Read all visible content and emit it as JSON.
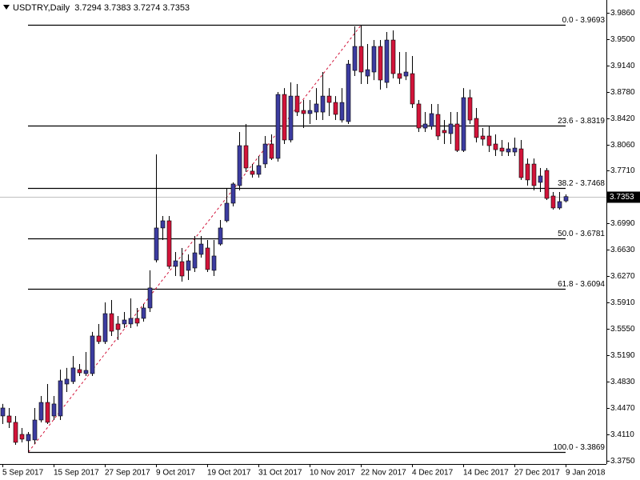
{
  "chart_data": {
    "type": "candlestick",
    "title": "USDTRY,Daily",
    "categories": [
      "5 Sep 2017",
      null,
      null,
      null,
      null,
      null,
      null,
      null,
      "15 Sep 2017",
      null,
      null,
      null,
      null,
      null,
      null,
      null,
      "27 Sep 2017",
      null,
      null,
      null,
      null,
      null,
      null,
      null,
      "9 Oct 2017",
      null,
      null,
      null,
      null,
      null,
      null,
      null,
      "19 Oct 2017",
      null,
      null,
      null,
      null,
      null,
      null,
      null,
      "31 Oct 2017",
      null,
      null,
      null,
      null,
      null,
      null,
      null,
      "10 Nov 2017",
      null,
      null,
      null,
      null,
      null,
      null,
      null,
      "22 Nov 2017",
      null,
      null,
      null,
      null,
      null,
      null,
      null,
      "4 Dec 2017",
      null,
      null,
      null,
      null,
      null,
      null,
      null,
      "14 Dec 2017",
      null,
      null,
      null,
      null,
      null,
      null,
      null,
      "27 Dec 2017",
      null,
      null,
      null,
      null,
      null,
      null,
      null,
      "9 Jan 2018"
    ],
    "open": [
      3.4361,
      3.4361,
      3.4274,
      3.411,
      3.4023,
      3.4034,
      3.4306,
      3.4546,
      3.4361,
      3.4361,
      3.4797,
      3.483,
      3.4994,
      3.4939,
      3.4939,
      3.5452,
      3.5375,
      3.5757,
      3.5616,
      3.5616,
      3.5616,
      3.5692,
      3.5692,
      3.5834,
      3.6488,
      3.6925,
      3.7023,
      3.6401,
      3.6466,
      3.6347,
      3.6379,
      3.6565,
      3.6652,
      3.6347,
      3.6706,
      3.7023,
      3.7263,
      3.7503,
      3.8048,
      3.77,
      3.7656,
      3.7798,
      3.807,
      3.7874,
      3.8746,
      3.8125,
      3.8724,
      3.8528,
      3.8485,
      3.8506,
      3.8506,
      3.8724,
      3.8637,
      3.8397,
      3.8376,
      3.9073,
      3.9401,
      3.8997,
      3.9052,
      3.9401,
      3.891,
      3.9488,
      3.903,
      3.8997,
      3.903,
      3.8616,
      3.8288,
      3.831,
      3.8474,
      3.8256,
      3.8212,
      3.8343,
      3.7982,
      3.8703,
      3.8419,
      3.8179,
      3.8179,
      3.807,
      3.8015,
      3.7961,
      3.7961,
      3.8004,
      3.7797,
      3.7797,
      3.7547,
      3.771,
      3.7361,
      3.7198,
      3.7294
    ],
    "high": [
      3.4525,
      3.447,
      3.4361,
      3.4197,
      3.4143,
      3.447,
      3.4634,
      3.4797,
      3.4634,
      3.4994,
      3.5016,
      3.5179,
      3.507,
      3.5234,
      3.5507,
      3.5615,
      3.591,
      3.5943,
      3.5725,
      3.5779,
      3.5965,
      3.5834,
      3.5888,
      3.6347,
      3.7928,
      3.7088,
      3.7088,
      3.6597,
      3.6652,
      3.6565,
      3.6816,
      3.6816,
      3.6761,
      3.6761,
      3.7034,
      3.747,
      3.7547,
      3.8234,
      3.8343,
      3.7798,
      3.7907,
      3.8179,
      3.8201,
      3.8779,
      3.8833,
      3.891,
      3.8888,
      3.867,
      3.867,
      3.8833,
      3.9052,
      3.8833,
      3.8724,
      3.8833,
      3.9216,
      3.9674,
      3.9693,
      3.9434,
      3.9488,
      3.9488,
      3.9598,
      3.962,
      3.9325,
      3.9325,
      3.927,
      3.867,
      3.8506,
      3.8616,
      3.8616,
      3.8397,
      3.8506,
      3.8506,
      3.8833,
      3.8812,
      3.8561,
      3.8288,
      3.831,
      3.8201,
      3.8125,
      3.8092,
      3.8158,
      3.8125,
      3.7873,
      3.7873,
      3.7743,
      3.7743,
      3.7416,
      3.7416,
      3.7383
    ],
    "low": [
      3.4252,
      3.4197,
      3.3968,
      3.4001,
      3.3869,
      3.3979,
      3.4274,
      3.4252,
      3.4306,
      3.4306,
      3.4688,
      3.4797,
      3.4906,
      3.4906,
      3.4906,
      3.5343,
      3.5343,
      3.5452,
      3.5397,
      3.5561,
      3.5561,
      3.5583,
      3.5648,
      3.5779,
      3.6456,
      3.6761,
      3.6368,
      3.627,
      3.6194,
      3.6216,
      3.6325,
      3.6521,
      3.6325,
      3.627,
      3.6685,
      3.7001,
      3.7219,
      3.7438,
      3.7689,
      3.7612,
      3.7612,
      3.7743,
      3.7852,
      3.783,
      3.807,
      3.8092,
      3.8452,
      3.8288,
      3.8343,
      3.8397,
      3.8397,
      3.8452,
      3.8397,
      3.8364,
      3.8343,
      3.8997,
      3.8888,
      3.8888,
      3.8942,
      3.8812,
      3.8833,
      3.8965,
      3.8888,
      3.8942,
      3.8561,
      3.8234,
      3.8234,
      3.8267,
      3.8125,
      3.807,
      3.807,
      3.7961,
      3.7961,
      3.8343,
      3.8092,
      3.8048,
      3.7961,
      3.7907,
      3.7907,
      3.7907,
      3.7907,
      3.758,
      3.7503,
      3.7438,
      3.7416,
      3.7306,
      3.7176,
      3.7176,
      3.7274
    ],
    "close": [
      3.447,
      3.4274,
      3.4001,
      3.4045,
      3.411,
      3.4306,
      3.4546,
      3.4274,
      3.4525,
      3.4841,
      3.4863,
      3.5016,
      3.495,
      3.4983,
      3.5452,
      3.5375,
      3.5757,
      3.5517,
      3.5539,
      3.567,
      3.5692,
      3.5627,
      3.5834,
      3.6107,
      3.6925,
      3.7023,
      3.6401,
      3.6477,
      3.627,
      3.6477,
      3.6586,
      3.6706,
      3.6358,
      3.6543,
      3.6925,
      3.7263,
      3.7525,
      3.8048,
      3.7743,
      3.7656,
      3.7776,
      3.807,
      3.7874,
      3.8746,
      3.8125,
      3.8724,
      3.8506,
      3.8485,
      3.8528,
      3.8616,
      3.8724,
      3.8637,
      3.8474,
      3.8637,
      3.916,
      3.9401,
      3.9052,
      3.9084,
      3.9401,
      3.8943,
      3.9488,
      3.903,
      3.8965,
      3.9052,
      3.8616,
      3.8288,
      3.8343,
      3.8485,
      3.8179,
      3.8223,
      3.8343,
      3.7982,
      3.8703,
      3.8397,
      3.8158,
      3.8136,
      3.8048,
      3.7993,
      3.7972,
      3.8004,
      3.8015,
      3.7612,
      3.758,
      3.7503,
      3.7634,
      3.7328,
      3.7198,
      3.7285,
      3.7353
    ],
    "up_color": "#3c3ca0",
    "down_color": "#d2143a",
    "wick_color": "#000000",
    "ylim": [
      3.3706,
      4.0034
    ],
    "yticks": [
      {
        "value": 3.986,
        "label": "3.9860"
      },
      {
        "value": 3.95,
        "label": "3.9500"
      },
      {
        "value": 3.914,
        "label": "3.9140"
      },
      {
        "value": 3.878,
        "label": "3.8780"
      },
      {
        "value": 3.842,
        "label": "3.8420"
      },
      {
        "value": 3.806,
        "label": "3.8060"
      },
      {
        "value": 3.771,
        "label": "3.7710"
      },
      {
        "value": 3.699,
        "label": "3.6990"
      },
      {
        "value": 3.663,
        "label": "3.6630"
      },
      {
        "value": 3.627,
        "label": "3.6270"
      },
      {
        "value": 3.591,
        "label": "3.5910"
      },
      {
        "value": 3.555,
        "label": "3.5550"
      },
      {
        "value": 3.519,
        "label": "3.5190"
      },
      {
        "value": 3.483,
        "label": "3.4830"
      },
      {
        "value": 3.447,
        "label": "3.4470"
      },
      {
        "value": 3.411,
        "label": "3.4110"
      },
      {
        "value": 3.375,
        "label": "3.3750"
      }
    ],
    "grid": false,
    "fib_levels": [
      {
        "label": "0.0 - 3.9693",
        "value": 3.9693
      },
      {
        "label": "23.6 - 3.8319",
        "value": 3.8319
      },
      {
        "label": "38.2 - 3.7468",
        "value": 3.7468
      },
      {
        "label": "50.0 - 3.6781",
        "value": 3.6781
      },
      {
        "label": "61.8 - 3.6094",
        "value": 3.6094
      },
      {
        "label": "100.0 - 3.3869",
        "value": 3.3869
      }
    ],
    "fib_color": "#000000",
    "trendline_color": "#d2143a"
  }
}
